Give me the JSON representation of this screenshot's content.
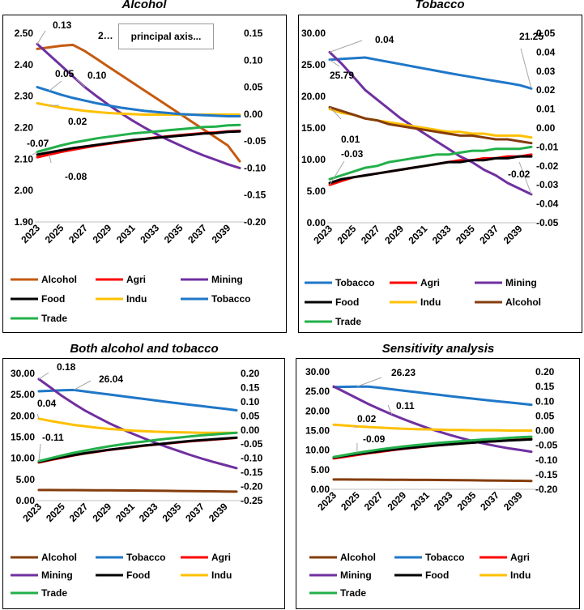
{
  "chart_data": [
    {
      "type": "line",
      "title": "Alcohol",
      "x": [
        2023,
        2024,
        2025,
        2026,
        2027,
        2028,
        2029,
        2030,
        2031,
        2032,
        2033,
        2034,
        2035,
        2036,
        2037,
        2038,
        2039,
        2040
      ],
      "xticks": [
        "2023",
        "2025",
        "2027",
        "2029",
        "2031",
        "2033",
        "2035",
        "2037",
        "2039"
      ],
      "ylim": [
        1.9,
        2.5
      ],
      "yticks": [
        "1.90",
        "2.00",
        "2.10",
        "2.20",
        "2.30",
        "2.40",
        "2.50"
      ],
      "y2lim": [
        -0.2,
        0.15
      ],
      "y2ticks": [
        "-0.20",
        "-0.15",
        "-0.10",
        "-0.05",
        "0.00",
        "0.05",
        "0.10",
        "0.15"
      ],
      "legend": [
        "Alcohol",
        "Agri",
        "Mining",
        "Food",
        "Indu",
        "Tobacco",
        "Trade"
      ],
      "series": [
        {
          "name": "Alcohol",
          "color": "#c55a11",
          "axis": "left",
          "values": [
            2.45,
            2.455,
            2.46,
            2.463,
            2.443,
            2.418,
            2.393,
            2.368,
            2.343,
            2.318,
            2.293,
            2.268,
            2.243,
            2.218,
            2.193,
            2.168,
            2.143,
            2.093
          ]
        },
        {
          "name": "Agri",
          "color": "#ff0000",
          "axis": "right",
          "values": [
            -0.08,
            -0.075,
            -0.07,
            -0.066,
            -0.062,
            -0.058,
            -0.055,
            -0.052,
            -0.049,
            -0.046,
            -0.043,
            -0.041,
            -0.039,
            -0.037,
            -0.035,
            -0.034,
            -0.032,
            -0.031
          ]
        },
        {
          "name": "Mining",
          "color": "#7030a0",
          "axis": "right",
          "values": [
            0.13,
            0.11,
            0.09,
            0.07,
            0.05,
            0.033,
            0.017,
            0.002,
            -0.012,
            -0.025,
            -0.037,
            -0.048,
            -0.058,
            -0.068,
            -0.077,
            -0.085,
            -0.093,
            -0.1
          ]
        },
        {
          "name": "Food",
          "color": "#000000",
          "axis": "right",
          "values": [
            -0.075,
            -0.071,
            -0.067,
            -0.063,
            -0.06,
            -0.057,
            -0.054,
            -0.051,
            -0.048,
            -0.046,
            -0.044,
            -0.042,
            -0.04,
            -0.038,
            -0.036,
            -0.035,
            -0.033,
            -0.032
          ]
        },
        {
          "name": "Indu",
          "color": "#ffc000",
          "axis": "right",
          "values": [
            0.02,
            0.016,
            0.012,
            0.009,
            0.006,
            0.004,
            0.002,
            0.001,
            0.0,
            -0.001,
            -0.001,
            -0.001,
            -0.001,
            -0.001,
            -0.001,
            -0.001,
            -0.001,
            -0.001
          ]
        },
        {
          "name": "Tobacco",
          "color": "#1f77c8",
          "axis": "right",
          "values": [
            0.05,
            0.043,
            0.036,
            0.03,
            0.025,
            0.02,
            0.016,
            0.012,
            0.009,
            0.006,
            0.004,
            0.002,
            0.0,
            -0.001,
            -0.002,
            -0.003,
            -0.004,
            -0.004
          ]
        },
        {
          "name": "Trade",
          "color": "#22b04a",
          "axis": "right",
          "values": [
            -0.07,
            -0.064,
            -0.058,
            -0.053,
            -0.049,
            -0.045,
            -0.042,
            -0.039,
            -0.036,
            -0.034,
            -0.032,
            -0.03,
            -0.028,
            -0.026,
            -0.024,
            -0.023,
            -0.021,
            -0.02
          ]
        }
      ],
      "annotations": [
        "0.13",
        "2…",
        "0.05",
        "0.10",
        "0.02",
        "-0.07",
        "-0.08"
      ],
      "tooltip": "principal axis..."
    },
    {
      "type": "line",
      "title": "Tobacco",
      "x": [
        2023,
        2024,
        2025,
        2026,
        2027,
        2028,
        2029,
        2030,
        2031,
        2032,
        2033,
        2034,
        2035,
        2036,
        2037,
        2038,
        2039,
        2040
      ],
      "xticks": [
        "2023",
        "2025",
        "2027",
        "2029",
        "2031",
        "2033",
        "2035",
        "2037",
        "2039"
      ],
      "ylim": [
        0.0,
        30.0
      ],
      "yticks": [
        "0.00",
        "5.00",
        "10.00",
        "15.00",
        "20.00",
        "25.00",
        "30.00"
      ],
      "y2lim": [
        -0.05,
        0.05
      ],
      "y2ticks": [
        "-0.05",
        "-0.04",
        "-0.03",
        "-0.02",
        "-0.01",
        "0.00",
        "0.01",
        "0.02",
        "0.03",
        "0.04",
        "0.05"
      ],
      "legend": [
        "Tobacco",
        "Agri",
        "Mining",
        "Food",
        "Indu",
        "Alcohol",
        "Trade"
      ],
      "series": [
        {
          "name": "Tobacco",
          "color": "#1f77c8",
          "axis": "left",
          "values": [
            25.79,
            25.92,
            26.04,
            26.15,
            25.8,
            25.45,
            25.1,
            24.75,
            24.4,
            24.05,
            23.7,
            23.37,
            23.05,
            22.73,
            22.42,
            22.12,
            21.78,
            21.25
          ]
        },
        {
          "name": "Agri",
          "color": "#ff0000",
          "axis": "right",
          "values": [
            -0.03,
            -0.028,
            -0.026,
            -0.025,
            -0.024,
            -0.023,
            -0.022,
            -0.021,
            -0.02,
            -0.019,
            -0.018,
            -0.017,
            -0.017,
            -0.016,
            -0.016,
            -0.015,
            -0.015,
            -0.014
          ]
        },
        {
          "name": "Mining",
          "color": "#7030a0",
          "axis": "right",
          "values": [
            0.04,
            0.034,
            0.027,
            0.02,
            0.015,
            0.01,
            0.005,
            0.001,
            -0.003,
            -0.007,
            -0.011,
            -0.015,
            -0.018,
            -0.022,
            -0.025,
            -0.029,
            -0.032,
            -0.035
          ]
        },
        {
          "name": "Food",
          "color": "#000000",
          "axis": "right",
          "values": [
            -0.029,
            -0.027,
            -0.026,
            -0.025,
            -0.024,
            -0.023,
            -0.022,
            -0.021,
            -0.02,
            -0.019,
            -0.018,
            -0.018,
            -0.017,
            -0.017,
            -0.016,
            -0.016,
            -0.015,
            -0.015
          ]
        },
        {
          "name": "Indu",
          "color": "#ffc000",
          "axis": "right",
          "values": [
            0.01,
            0.008,
            0.007,
            0.005,
            0.004,
            0.003,
            0.002,
            0.001,
            0.0,
            -0.001,
            -0.002,
            -0.002,
            -0.003,
            -0.003,
            -0.004,
            -0.004,
            -0.004,
            -0.005
          ]
        },
        {
          "name": "Alcohol",
          "color": "#843c0c",
          "axis": "right",
          "values": [
            0.011,
            0.009,
            0.007,
            0.005,
            0.004,
            0.002,
            0.001,
            0.0,
            -0.001,
            -0.002,
            -0.003,
            -0.004,
            -0.004,
            -0.005,
            -0.006,
            -0.006,
            -0.007,
            -0.008
          ]
        },
        {
          "name": "Trade",
          "color": "#22b04a",
          "axis": "right",
          "values": [
            -0.027,
            -0.025,
            -0.023,
            -0.021,
            -0.02,
            -0.018,
            -0.017,
            -0.016,
            -0.015,
            -0.014,
            -0.014,
            -0.013,
            -0.012,
            -0.012,
            -0.011,
            -0.011,
            -0.011,
            -0.01
          ]
        }
      ],
      "annotations": [
        "0.04",
        "25.79",
        "21.25",
        "0.01",
        "-0.03",
        "-0.02"
      ]
    },
    {
      "type": "line",
      "title": "Both alcohol and tobacco",
      "x": [
        2023,
        2024,
        2025,
        2026,
        2027,
        2028,
        2029,
        2030,
        2031,
        2032,
        2033,
        2034,
        2035,
        2036,
        2037,
        2038,
        2039,
        2040
      ],
      "xticks": [
        "2023",
        "2025",
        "2027",
        "2029",
        "2031",
        "2033",
        "2035",
        "2037",
        "2039"
      ],
      "ylim": [
        0.0,
        30.0
      ],
      "yticks": [
        "0.00",
        "5.00",
        "10.00",
        "15.00",
        "20.00",
        "25.00",
        "30.00"
      ],
      "y2lim": [
        -0.25,
        0.2
      ],
      "y2ticks": [
        "-0.25",
        "-0.20",
        "-0.15",
        "-0.10",
        "-0.05",
        "0.00",
        "0.05",
        "0.10",
        "0.15",
        "0.20"
      ],
      "legend": [
        "Alcohol",
        "Tobacco",
        "Agri",
        "Mining",
        "Food",
        "Indu",
        "Trade"
      ],
      "series": [
        {
          "name": "Alcohol",
          "color": "#843c0c",
          "axis": "left",
          "values": [
            2.5,
            2.5,
            2.49,
            2.48,
            2.47,
            2.45,
            2.43,
            2.41,
            2.39,
            2.37,
            2.34,
            2.31,
            2.28,
            2.25,
            2.22,
            2.19,
            2.16,
            2.12
          ]
        },
        {
          "name": "Tobacco",
          "color": "#1f77c8",
          "axis": "left",
          "values": [
            25.8,
            25.92,
            26.04,
            26.1,
            25.75,
            25.4,
            25.05,
            24.7,
            24.35,
            24.0,
            23.65,
            23.3,
            22.95,
            22.62,
            22.3,
            21.98,
            21.66,
            21.3
          ]
        },
        {
          "name": "Agri",
          "color": "#ff0000",
          "axis": "right",
          "values": [
            -0.115,
            -0.106,
            -0.098,
            -0.09,
            -0.083,
            -0.077,
            -0.071,
            -0.066,
            -0.061,
            -0.056,
            -0.052,
            -0.048,
            -0.044,
            -0.04,
            -0.037,
            -0.034,
            -0.031,
            -0.028
          ]
        },
        {
          "name": "Mining",
          "color": "#7030a0",
          "axis": "right",
          "values": [
            0.18,
            0.15,
            0.12,
            0.093,
            0.068,
            0.046,
            0.025,
            0.006,
            -0.012,
            -0.029,
            -0.045,
            -0.06,
            -0.074,
            -0.088,
            -0.101,
            -0.113,
            -0.124,
            -0.135
          ]
        },
        {
          "name": "Food",
          "color": "#000000",
          "axis": "right",
          "values": [
            -0.113,
            -0.104,
            -0.096,
            -0.089,
            -0.082,
            -0.076,
            -0.07,
            -0.065,
            -0.06,
            -0.055,
            -0.051,
            -0.047,
            -0.043,
            -0.039,
            -0.036,
            -0.033,
            -0.03,
            -0.027
          ]
        },
        {
          "name": "Indu",
          "color": "#ffc000",
          "axis": "right",
          "values": [
            0.04,
            0.032,
            0.025,
            0.018,
            0.013,
            0.008,
            0.004,
            0.001,
            -0.002,
            -0.004,
            -0.006,
            -0.007,
            -0.008,
            -0.009,
            -0.01,
            -0.01,
            -0.01,
            -0.01
          ]
        },
        {
          "name": "Trade",
          "color": "#22b04a",
          "axis": "right",
          "values": [
            -0.11,
            -0.1,
            -0.09,
            -0.081,
            -0.073,
            -0.065,
            -0.058,
            -0.052,
            -0.046,
            -0.041,
            -0.036,
            -0.031,
            -0.027,
            -0.023,
            -0.019,
            -0.016,
            -0.013,
            -0.01
          ]
        }
      ],
      "annotations": [
        "0.18",
        "26.04",
        "0.04",
        "-0.11"
      ]
    },
    {
      "type": "line",
      "title": "Sensitivity analysis",
      "x": [
        2023,
        2024,
        2025,
        2026,
        2027,
        2028,
        2029,
        2030,
        2031,
        2032,
        2033,
        2034,
        2035,
        2036,
        2037,
        2038,
        2039,
        2040
      ],
      "xticks": [
        "2023",
        "2025",
        "2027",
        "2029",
        "2031",
        "2033",
        "2035",
        "2037",
        "2039"
      ],
      "ylim": [
        0.0,
        30.0
      ],
      "yticks": [
        "0.00",
        "5.00",
        "10.00",
        "15.00",
        "20.00",
        "25.00",
        "30.00"
      ],
      "y2lim": [
        -0.2,
        0.2
      ],
      "y2ticks": [
        "-0.20",
        "-0.15",
        "-0.10",
        "-0.05",
        "0.00",
        "0.05",
        "0.10",
        "0.15",
        "0.20"
      ],
      "legend": [
        "Alcohol",
        "Tobacco",
        "Agri",
        "Mining",
        "Food",
        "Indu",
        "Trade"
      ],
      "series": [
        {
          "name": "Alcohol",
          "color": "#843c0c",
          "axis": "left",
          "values": [
            2.5,
            2.5,
            2.49,
            2.48,
            2.47,
            2.45,
            2.43,
            2.41,
            2.39,
            2.37,
            2.35,
            2.32,
            2.29,
            2.26,
            2.23,
            2.2,
            2.17,
            2.14
          ]
        },
        {
          "name": "Tobacco",
          "color": "#1f77c8",
          "axis": "left",
          "values": [
            26.1,
            26.17,
            26.23,
            26.23,
            25.9,
            25.55,
            25.2,
            24.85,
            24.5,
            24.15,
            23.8,
            23.47,
            23.15,
            22.83,
            22.52,
            22.22,
            21.92,
            21.6
          ]
        },
        {
          "name": "Agri",
          "color": "#ff0000",
          "axis": "right",
          "values": [
            -0.095,
            -0.089,
            -0.083,
            -0.077,
            -0.072,
            -0.067,
            -0.062,
            -0.058,
            -0.054,
            -0.05,
            -0.047,
            -0.044,
            -0.041,
            -0.038,
            -0.036,
            -0.033,
            -0.031,
            -0.029
          ]
        },
        {
          "name": "Mining",
          "color": "#7030a0",
          "axis": "right",
          "values": [
            0.15,
            0.13,
            0.11,
            0.09,
            0.072,
            0.055,
            0.039,
            0.024,
            0.01,
            -0.003,
            -0.015,
            -0.026,
            -0.036,
            -0.045,
            -0.053,
            -0.06,
            -0.066,
            -0.072
          ]
        },
        {
          "name": "Food",
          "color": "#000000",
          "axis": "right",
          "values": [
            -0.092,
            -0.086,
            -0.08,
            -0.075,
            -0.07,
            -0.065,
            -0.061,
            -0.057,
            -0.053,
            -0.05,
            -0.047,
            -0.044,
            -0.041,
            -0.038,
            -0.036,
            -0.034,
            -0.032,
            -0.03
          ]
        },
        {
          "name": "Indu",
          "color": "#ffc000",
          "axis": "right",
          "values": [
            0.02,
            0.017,
            0.014,
            0.012,
            0.01,
            0.008,
            0.006,
            0.005,
            0.004,
            0.003,
            0.002,
            0.002,
            0.001,
            0.001,
            0.001,
            0.0,
            0.0,
            0.0
          ]
        },
        {
          "name": "Trade",
          "color": "#22b04a",
          "axis": "right",
          "values": [
            -0.09,
            -0.083,
            -0.076,
            -0.07,
            -0.064,
            -0.059,
            -0.054,
            -0.05,
            -0.046,
            -0.042,
            -0.039,
            -0.036,
            -0.033,
            -0.03,
            -0.028,
            -0.025,
            -0.023,
            -0.021
          ]
        }
      ],
      "annotations": [
        "26.23",
        "0.11",
        "0.02",
        "-0.09"
      ]
    }
  ]
}
